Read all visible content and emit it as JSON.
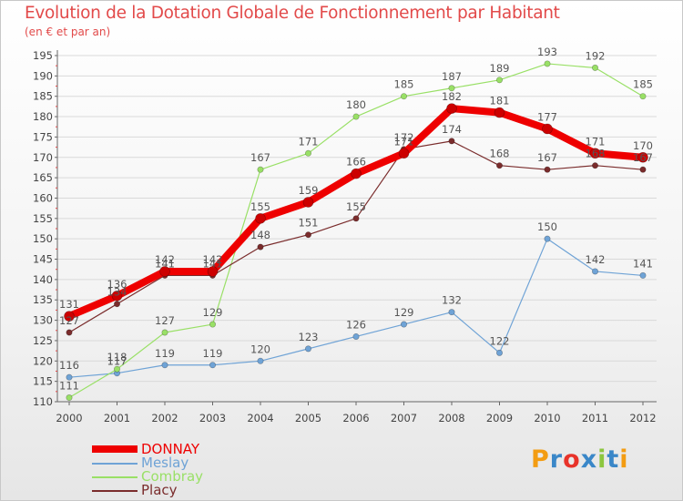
{
  "title": "Evolution de la Dotation Globale de Fonctionnement par Habitant",
  "subtitle": "(en € et par an)",
  "brand": {
    "text": "Proxiti",
    "colors": [
      "#f39c12",
      "#3a87c8",
      "#e8332a",
      "#3a87c8",
      "#8cc63f",
      "#3a87c8",
      "#f39c12"
    ]
  },
  "chart_data": {
    "type": "line",
    "title": "Evolution de la Dotation Globale de Fonctionnement par Habitant",
    "subtitle": "(en € et par an)",
    "xlabel": "",
    "ylabel": "",
    "x": [
      "2000",
      "2001",
      "2002",
      "2003",
      "2004",
      "2005",
      "2006",
      "2007",
      "2008",
      "2009",
      "2010",
      "2011",
      "2012"
    ],
    "ylim": [
      110,
      195
    ],
    "yticks": [
      110,
      115,
      120,
      125,
      130,
      135,
      140,
      145,
      150,
      155,
      160,
      165,
      170,
      175,
      180,
      185,
      190,
      195
    ],
    "legend_position": "bottom-left",
    "series": [
      {
        "name": "DONNAY",
        "color": "#ee0000",
        "width": 8,
        "values": [
          131,
          136,
          142,
          142,
          155,
          159,
          166,
          171,
          182,
          181,
          177,
          171,
          170
        ]
      },
      {
        "name": "Meslay",
        "color": "#6fa3d6",
        "width": 1.2,
        "values": [
          116,
          117,
          119,
          119,
          120,
          123,
          126,
          129,
          132,
          122,
          150,
          142,
          141
        ]
      },
      {
        "name": "Combray",
        "color": "#99e066",
        "width": 1.2,
        "values": [
          111,
          118,
          127,
          129,
          167,
          171,
          180,
          185,
          187,
          189,
          193,
          192,
          185
        ]
      },
      {
        "name": "Placy",
        "color": "#7a2c2c",
        "width": 1.2,
        "values": [
          127,
          134,
          141,
          141,
          148,
          151,
          155,
          172,
          174,
          168,
          167,
          168,
          167
        ]
      }
    ]
  }
}
